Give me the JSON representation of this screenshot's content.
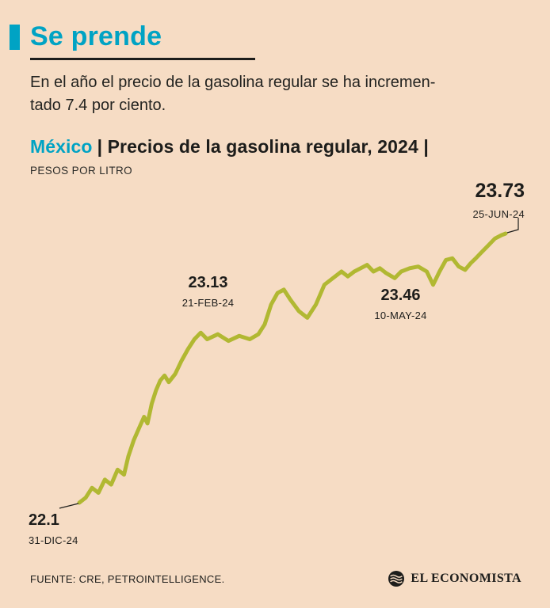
{
  "header": {
    "title": "Se prende",
    "subtitle_line1": "En el año el precio de la gasolina regular se ha incremen-",
    "subtitle_line2": "tado 7.4 por ciento."
  },
  "chart_header": {
    "region": "México",
    "title_rest": "| Precios de la gasolina regular, 2024 |",
    "unit": "PESOS POR LITRO"
  },
  "footer": {
    "source": "FUENTE: CRE, PETROINTELLIGENCE.",
    "brand": "EL ECONOMISTA"
  },
  "colors": {
    "background": "#f6dcc4",
    "accent_teal": "#00a3c4",
    "line_olive": "#b1b832",
    "text": "#1d1d1b"
  },
  "chart_data": {
    "type": "line",
    "title": "México | Precios de la gasolina regular, 2024",
    "ylabel": "PESOS POR LITRO",
    "x_range_dates": [
      "31-DIC-24",
      "25-JUN-24"
    ],
    "y_range": [
      22.0,
      23.8
    ],
    "grid": false,
    "legend": false,
    "line_color": "#b1b832",
    "annotations": [
      {
        "value": 22.1,
        "label": "22.1",
        "date": "31-DIC-24",
        "t": 0.0
      },
      {
        "value": 23.13,
        "label": "23.13",
        "date": "21-FEB-24",
        "t": 0.285
      },
      {
        "value": 23.46,
        "label": "23.46",
        "date": "10-MAY-24",
        "t": 0.74
      },
      {
        "value": 23.73,
        "label": "23.73",
        "date": "25-JUN-24",
        "t": 1.0
      }
    ],
    "series": [
      {
        "name": "Precio de la gasolina regular (pesos por litro)",
        "points": [
          [
            0.0,
            22.1
          ],
          [
            0.015,
            22.13
          ],
          [
            0.03,
            22.19
          ],
          [
            0.045,
            22.16
          ],
          [
            0.06,
            22.24
          ],
          [
            0.075,
            22.21
          ],
          [
            0.09,
            22.3
          ],
          [
            0.105,
            22.27
          ],
          [
            0.115,
            22.38
          ],
          [
            0.128,
            22.48
          ],
          [
            0.14,
            22.55
          ],
          [
            0.152,
            22.62
          ],
          [
            0.16,
            22.58
          ],
          [
            0.17,
            22.7
          ],
          [
            0.18,
            22.78
          ],
          [
            0.19,
            22.84
          ],
          [
            0.2,
            22.87
          ],
          [
            0.21,
            22.83
          ],
          [
            0.225,
            22.88
          ],
          [
            0.24,
            22.96
          ],
          [
            0.255,
            23.03
          ],
          [
            0.27,
            23.09
          ],
          [
            0.285,
            23.13
          ],
          [
            0.3,
            23.09
          ],
          [
            0.325,
            23.12
          ],
          [
            0.35,
            23.08
          ],
          [
            0.375,
            23.11
          ],
          [
            0.4,
            23.09
          ],
          [
            0.42,
            23.12
          ],
          [
            0.435,
            23.18
          ],
          [
            0.45,
            23.3
          ],
          [
            0.465,
            23.37
          ],
          [
            0.48,
            23.39
          ],
          [
            0.495,
            23.33
          ],
          [
            0.515,
            23.26
          ],
          [
            0.535,
            23.22
          ],
          [
            0.555,
            23.3
          ],
          [
            0.575,
            23.42
          ],
          [
            0.595,
            23.46
          ],
          [
            0.615,
            23.5
          ],
          [
            0.63,
            23.47
          ],
          [
            0.645,
            23.5
          ],
          [
            0.66,
            23.52
          ],
          [
            0.675,
            23.54
          ],
          [
            0.69,
            23.5
          ],
          [
            0.705,
            23.52
          ],
          [
            0.72,
            23.49
          ],
          [
            0.74,
            23.46
          ],
          [
            0.755,
            23.5
          ],
          [
            0.775,
            23.52
          ],
          [
            0.795,
            23.53
          ],
          [
            0.815,
            23.5
          ],
          [
            0.83,
            23.42
          ],
          [
            0.845,
            23.5
          ],
          [
            0.86,
            23.57
          ],
          [
            0.875,
            23.58
          ],
          [
            0.89,
            23.53
          ],
          [
            0.905,
            23.51
          ],
          [
            0.918,
            23.55
          ],
          [
            0.93,
            23.58
          ],
          [
            0.945,
            23.62
          ],
          [
            0.96,
            23.66
          ],
          [
            0.975,
            23.7
          ],
          [
            0.99,
            23.72
          ],
          [
            1.0,
            23.73
          ]
        ]
      }
    ]
  }
}
